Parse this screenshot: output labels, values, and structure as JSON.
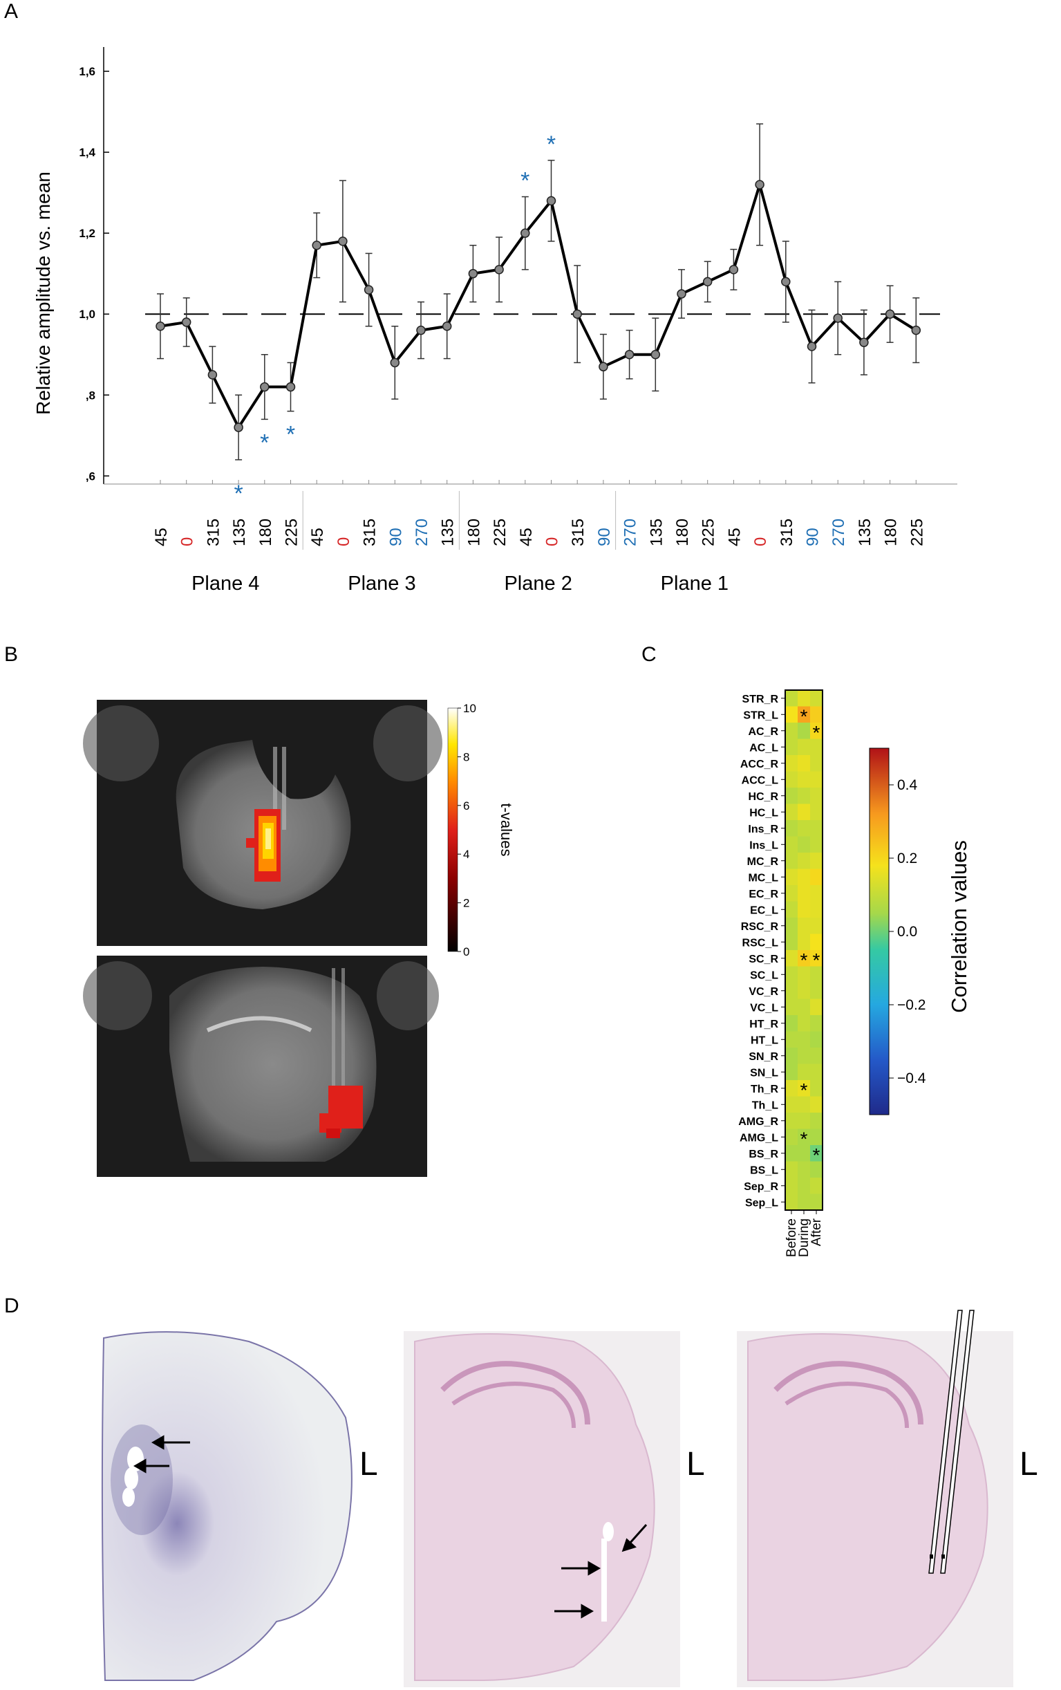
{
  "panels": {
    "a": "A",
    "b": "B",
    "c": "C",
    "d": "D"
  },
  "colors": {
    "line": "#000000",
    "red_angle": "#d62728",
    "blue_angle": "#1f6fb4",
    "star_blue": "#1f6fb4"
  },
  "chart_data": [
    {
      "type": "line",
      "ylabel": "Relative amplitude vs. mean",
      "ylim": [
        0.58,
        1.66
      ],
      "yticks": [
        0.6,
        0.8,
        1.0,
        1.2,
        1.4,
        1.6
      ],
      "ytick_labels": [
        ",6",
        ",8",
        "1,0",
        "1,2",
        "1,4",
        "1,6"
      ],
      "reference_line": 1.0,
      "groups": [
        "Plane 4",
        "Plane 3",
        "Plane 2",
        "Plane 1"
      ],
      "categories": [
        "45",
        "0",
        "315",
        "135",
        "180",
        "225",
        "45",
        "0",
        "315",
        "90",
        "270",
        "135",
        "180",
        "225",
        "45",
        "0",
        "315",
        "90",
        "270",
        "135",
        "180",
        "225",
        "45",
        "0",
        "315",
        "90",
        "270",
        "135",
        "180",
        "225"
      ],
      "category_colors": [
        "black",
        "red",
        "black",
        "black",
        "black",
        "black",
        "black",
        "red",
        "black",
        "blue",
        "blue",
        "black",
        "black",
        "black",
        "black",
        "red",
        "black",
        "blue",
        "blue",
        "black",
        "black",
        "black",
        "black",
        "red",
        "black",
        "blue",
        "blue",
        "black",
        "black",
        "black"
      ],
      "values": [
        0.97,
        0.98,
        0.85,
        0.72,
        0.82,
        0.82,
        1.17,
        1.18,
        1.06,
        0.88,
        0.96,
        0.97,
        1.1,
        1.11,
        1.2,
        1.28,
        1.0,
        0.87,
        0.9,
        0.9,
        1.05,
        1.08,
        1.11,
        1.32,
        1.08,
        0.92,
        0.99,
        0.93,
        1.0,
        0.96
      ],
      "error": [
        0.08,
        0.06,
        0.07,
        0.08,
        0.08,
        0.06,
        0.08,
        0.15,
        0.09,
        0.09,
        0.07,
        0.08,
        0.07,
        0.08,
        0.09,
        0.1,
        0.12,
        0.08,
        0.06,
        0.09,
        0.06,
        0.05,
        0.05,
        0.15,
        0.1,
        0.09,
        0.09,
        0.08,
        0.07,
        0.08
      ],
      "significance_markers": [
        {
          "index": 3,
          "label": "*"
        },
        {
          "index": 4,
          "label": "*"
        },
        {
          "index": 5,
          "label": "*"
        },
        {
          "index": 14,
          "label": "*"
        },
        {
          "index": 15,
          "label": "*"
        }
      ]
    },
    {
      "type": "heatmap",
      "colorbar_label": "Correlation values",
      "colorbar_range": [
        -0.5,
        0.5
      ],
      "colorbar_ticks": [
        0.4,
        0.2,
        0.0,
        -0.2,
        -0.4
      ],
      "colorbar_tick_labels": [
        "0.4",
        "0.2",
        "0.0",
        "−0.2",
        "−0.4"
      ],
      "rows": [
        "STR_R",
        "STR_L",
        "AC_R",
        "AC_L",
        "ACC_R",
        "ACC_L",
        "HC_R",
        "HC_L",
        "Ins_R",
        "Ins_L",
        "MC_R",
        "MC_L",
        "EC_R",
        "EC_L",
        "RSC_R",
        "RSC_L",
        "SC_R",
        "SC_L",
        "VC_R",
        "VC_L",
        "HT_R",
        "HT_L",
        "SN_R",
        "SN_L",
        "Th_R",
        "Th_L",
        "AMG_R",
        "AMG_L",
        "BS_R",
        "BS_L",
        "Sep_R",
        "Sep_L"
      ],
      "columns": [
        "Before",
        "During",
        "After"
      ],
      "values": [
        [
          0.1,
          0.15,
          0.12
        ],
        [
          0.18,
          0.3,
          0.22
        ],
        [
          0.1,
          0.06,
          0.2
        ],
        [
          0.1,
          0.12,
          0.12
        ],
        [
          0.14,
          0.16,
          0.12
        ],
        [
          0.12,
          0.14,
          0.14
        ],
        [
          0.08,
          0.1,
          0.12
        ],
        [
          0.12,
          0.16,
          0.12
        ],
        [
          0.08,
          0.1,
          0.1
        ],
        [
          0.1,
          0.08,
          0.1
        ],
        [
          0.1,
          0.12,
          0.14
        ],
        [
          0.14,
          0.16,
          0.2
        ],
        [
          0.12,
          0.16,
          0.15
        ],
        [
          0.1,
          0.16,
          0.15
        ],
        [
          0.08,
          0.14,
          0.14
        ],
        [
          0.08,
          0.14,
          0.18
        ],
        [
          0.14,
          0.22,
          0.2
        ],
        [
          0.1,
          0.12,
          0.1
        ],
        [
          0.1,
          0.12,
          0.1
        ],
        [
          0.1,
          0.1,
          0.14
        ],
        [
          0.06,
          0.1,
          0.08
        ],
        [
          0.08,
          0.08,
          0.06
        ],
        [
          0.06,
          0.08,
          0.08
        ],
        [
          0.06,
          0.1,
          0.1
        ],
        [
          0.14,
          0.16,
          0.1
        ],
        [
          0.12,
          0.12,
          0.14
        ],
        [
          0.1,
          0.1,
          0.08
        ],
        [
          0.08,
          0.06,
          0.06
        ],
        [
          0.06,
          0.06,
          0.0
        ],
        [
          0.1,
          0.08,
          0.06
        ],
        [
          0.1,
          0.08,
          0.1
        ],
        [
          0.1,
          0.08,
          0.08
        ]
      ],
      "stars": [
        [
          1,
          1
        ],
        [
          2,
          2
        ],
        [
          16,
          1
        ],
        [
          16,
          2
        ],
        [
          24,
          1
        ],
        [
          27,
          1
        ],
        [
          28,
          2
        ]
      ]
    }
  ],
  "panel_b": {
    "colorbar_label": "t-values",
    "colorbar_range": [
      0,
      10
    ],
    "colorbar_ticks": [
      0,
      2,
      4,
      6,
      8,
      10
    ],
    "colorbar_tick_labels": [
      "0",
      "2",
      "4",
      "6",
      "8",
      "10"
    ]
  },
  "panel_d": {
    "side_label": "L",
    "images": [
      "histology-section-left",
      "histology-section-middle",
      "histology-section-right"
    ]
  }
}
